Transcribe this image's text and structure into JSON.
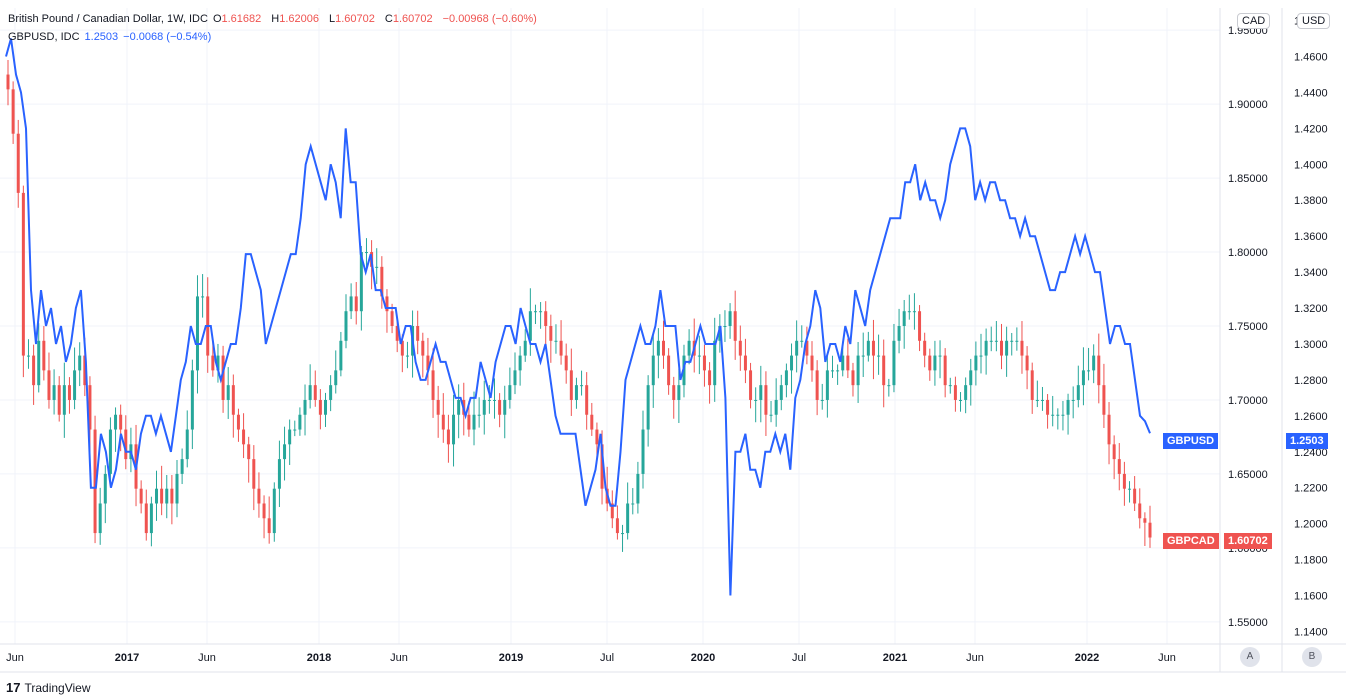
{
  "legend": {
    "main": {
      "title": "British Pound / Canadian Dollar, 1W, IDC",
      "o_label": "O",
      "o": "1.61682",
      "h_label": "H",
      "h": "1.62006",
      "l_label": "L",
      "l": "1.60702",
      "c_label": "C",
      "c": "1.60702",
      "change": "−0.00968 (−0.60%)"
    },
    "compare": {
      "title": "GBPUSD, IDC",
      "value": "1.2503",
      "change": "−0.0068 (−0.54%)"
    }
  },
  "axes": {
    "left_title": "CAD",
    "right_title": "USD",
    "scale_a": "A",
    "scale_b": "B"
  },
  "tags": {
    "gbpusd_label": "GBPUSD",
    "gbpusd_value": "1.2503",
    "gbpcad_label": "GBPCAD",
    "gbpcad_value": "1.60702"
  },
  "footer": {
    "logo_text": "17",
    "brand": "TradingView"
  },
  "colors": {
    "up": "#26a69a",
    "down": "#ef5350",
    "line": "#2962ff",
    "grid": "#f0f3fa"
  },
  "chart_data": {
    "type": "line",
    "x_tick_labels": [
      "Jun",
      "2017",
      "Jun",
      "2018",
      "Jun",
      "2019",
      "Jul",
      "2020",
      "Jul",
      "2021",
      "Jun",
      "2022",
      "Jun"
    ],
    "x_ticks_dates": [
      "2016-06",
      "2017-01",
      "2017-06",
      "2018-01",
      "2018-06",
      "2019-01",
      "2019-07",
      "2020-01",
      "2020-07",
      "2021-01",
      "2021-06",
      "2022-01",
      "2022-06"
    ],
    "cad_axis": {
      "ticks": [
        "1.95000",
        "1.90000",
        "1.85000",
        "1.80000",
        "1.75000",
        "1.70000",
        "1.65000",
        "1.60000",
        "1.55000"
      ],
      "range": [
        1.535,
        1.965
      ]
    },
    "usd_axis": {
      "ticks": [
        "1.4800",
        "1.4600",
        "1.4400",
        "1.4200",
        "1.4000",
        "1.3800",
        "1.3600",
        "1.3400",
        "1.3200",
        "1.3000",
        "1.2800",
        "1.2600",
        "1.2400",
        "1.2200",
        "1.2000",
        "1.1800",
        "1.1600",
        "1.1400"
      ],
      "range": [
        1.133,
        1.487
      ]
    },
    "gbpcad_close": [
      1.91,
      1.88,
      1.84,
      1.73,
      1.73,
      1.71,
      1.74,
      1.72,
      1.7,
      1.71,
      1.69,
      1.71,
      1.7,
      1.72,
      1.73,
      1.71,
      1.68,
      1.61,
      1.63,
      1.65,
      1.68,
      1.69,
      1.68,
      1.66,
      1.67,
      1.64,
      1.63,
      1.61,
      1.63,
      1.64,
      1.63,
      1.64,
      1.63,
      1.65,
      1.66,
      1.68,
      1.72,
      1.77,
      1.77,
      1.73,
      1.72,
      1.73,
      1.7,
      1.71,
      1.69,
      1.68,
      1.67,
      1.66,
      1.64,
      1.63,
      1.62,
      1.61,
      1.64,
      1.66,
      1.67,
      1.68,
      1.68,
      1.69,
      1.7,
      1.71,
      1.7,
      1.69,
      1.7,
      1.71,
      1.72,
      1.74,
      1.76,
      1.77,
      1.76,
      1.8,
      1.8,
      1.79,
      1.79,
      1.77,
      1.76,
      1.75,
      1.74,
      1.73,
      1.73,
      1.75,
      1.74,
      1.73,
      1.72,
      1.7,
      1.69,
      1.68,
      1.67,
      1.69,
      1.7,
      1.69,
      1.68,
      1.69,
      1.69,
      1.7,
      1.7,
      1.7,
      1.69,
      1.7,
      1.71,
      1.72,
      1.73,
      1.74,
      1.76,
      1.76,
      1.76,
      1.75,
      1.74,
      1.74,
      1.73,
      1.72,
      1.7,
      1.71,
      1.71,
      1.69,
      1.68,
      1.67,
      1.64,
      1.63,
      1.62,
      1.61,
      1.61,
      1.63,
      1.63,
      1.65,
      1.68,
      1.71,
      1.73,
      1.74,
      1.73,
      1.71,
      1.7,
      1.71,
      1.73,
      1.74,
      1.73,
      1.73,
      1.72,
      1.71,
      1.74,
      1.75,
      1.75,
      1.76,
      1.74,
      1.73,
      1.72,
      1.7,
      1.7,
      1.71,
      1.69,
      1.69,
      1.7,
      1.71,
      1.72,
      1.73,
      1.74,
      1.74,
      1.73,
      1.72,
      1.7,
      1.7,
      1.72,
      1.72,
      1.72,
      1.73,
      1.72,
      1.71,
      1.73,
      1.73,
      1.74,
      1.73,
      1.73,
      1.71,
      1.71,
      1.74,
      1.75,
      1.76,
      1.76,
      1.76,
      1.74,
      1.73,
      1.72,
      1.73,
      1.73,
      1.71,
      1.71,
      1.7,
      1.7,
      1.71,
      1.72,
      1.73,
      1.73,
      1.74,
      1.74,
      1.74,
      1.73,
      1.74,
      1.74,
      1.74,
      1.73,
      1.72,
      1.7,
      1.7,
      1.7,
      1.69,
      1.69,
      1.69,
      1.69,
      1.7,
      1.7,
      1.71,
      1.72,
      1.72,
      1.73,
      1.71,
      1.69,
      1.67,
      1.66,
      1.65,
      1.64,
      1.64,
      1.63,
      1.62,
      1.617,
      1.607
    ],
    "gbpusd_close": [
      1.46,
      1.47,
      1.45,
      1.44,
      1.42,
      1.33,
      1.3,
      1.33,
      1.31,
      1.32,
      1.3,
      1.31,
      1.29,
      1.3,
      1.32,
      1.33,
      1.29,
      1.22,
      1.22,
      1.25,
      1.24,
      1.22,
      1.23,
      1.25,
      1.24,
      1.24,
      1.23,
      1.25,
      1.26,
      1.26,
      1.25,
      1.26,
      1.25,
      1.24,
      1.26,
      1.28,
      1.29,
      1.31,
      1.3,
      1.3,
      1.31,
      1.31,
      1.29,
      1.28,
      1.29,
      1.3,
      1.3,
      1.32,
      1.35,
      1.35,
      1.34,
      1.33,
      1.3,
      1.31,
      1.32,
      1.33,
      1.34,
      1.35,
      1.35,
      1.37,
      1.4,
      1.41,
      1.4,
      1.39,
      1.38,
      1.4,
      1.39,
      1.37,
      1.42,
      1.39,
      1.39,
      1.35,
      1.34,
      1.35,
      1.33,
      1.33,
      1.32,
      1.32,
      1.32,
      1.3,
      1.31,
      1.31,
      1.29,
      1.28,
      1.28,
      1.29,
      1.3,
      1.29,
      1.29,
      1.28,
      1.27,
      1.27,
      1.26,
      1.27,
      1.27,
      1.29,
      1.28,
      1.27,
      1.29,
      1.3,
      1.31,
      1.31,
      1.3,
      1.32,
      1.31,
      1.3,
      1.3,
      1.29,
      1.3,
      1.28,
      1.26,
      1.25,
      1.25,
      1.25,
      1.25,
      1.23,
      1.21,
      1.22,
      1.23,
      1.25,
      1.22,
      1.21,
      1.21,
      1.24,
      1.28,
      1.29,
      1.3,
      1.31,
      1.3,
      1.3,
      1.31,
      1.33,
      1.31,
      1.31,
      1.31,
      1.28,
      1.29,
      1.29,
      1.3,
      1.31,
      1.3,
      1.3,
      1.3,
      1.31,
      1.27,
      1.16,
      1.24,
      1.24,
      1.25,
      1.23,
      1.23,
      1.22,
      1.24,
      1.24,
      1.25,
      1.24,
      1.25,
      1.23,
      1.27,
      1.28,
      1.3,
      1.31,
      1.33,
      1.32,
      1.29,
      1.3,
      1.3,
      1.29,
      1.31,
      1.3,
      1.33,
      1.32,
      1.31,
      1.33,
      1.34,
      1.35,
      1.36,
      1.37,
      1.37,
      1.37,
      1.39,
      1.39,
      1.4,
      1.38,
      1.39,
      1.38,
      1.38,
      1.37,
      1.38,
      1.4,
      1.41,
      1.42,
      1.42,
      1.41,
      1.38,
      1.39,
      1.38,
      1.39,
      1.39,
      1.38,
      1.38,
      1.37,
      1.37,
      1.36,
      1.37,
      1.36,
      1.36,
      1.35,
      1.34,
      1.33,
      1.33,
      1.34,
      1.34,
      1.35,
      1.36,
      1.35,
      1.36,
      1.35,
      1.34,
      1.34,
      1.32,
      1.3,
      1.31,
      1.31,
      1.3,
      1.3,
      1.28,
      1.26,
      1.257,
      1.2503
    ]
  }
}
